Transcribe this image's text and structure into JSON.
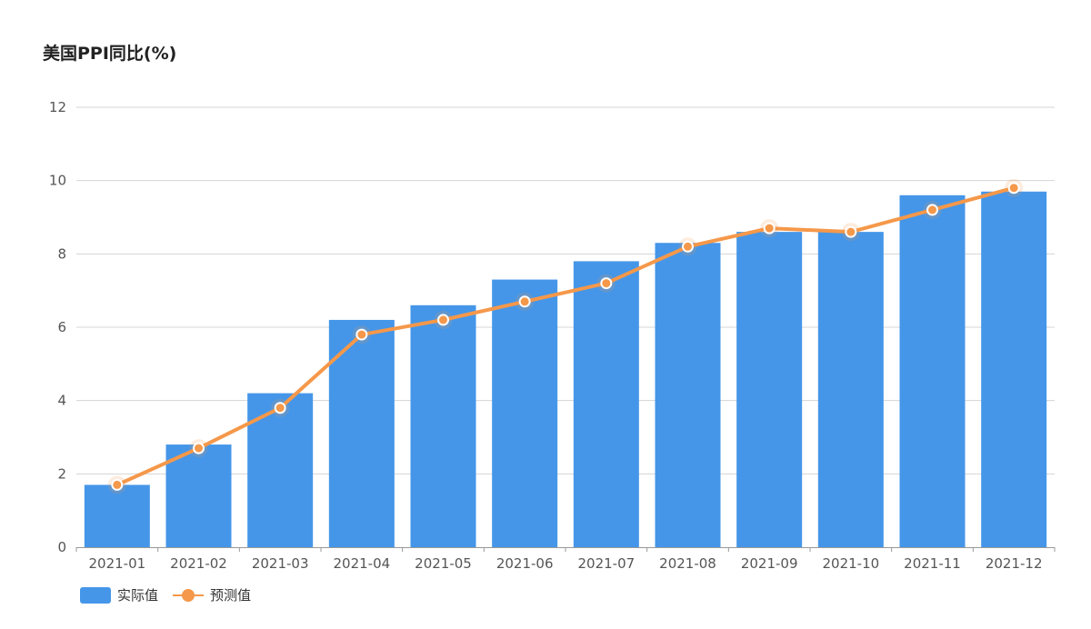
{
  "chart_data": {
    "type": "bar",
    "title": "美国PPI同比(%)",
    "xlabel": "",
    "ylabel": "",
    "categories": [
      "2021-01",
      "2021-02",
      "2021-03",
      "2021-04",
      "2021-05",
      "2021-06",
      "2021-07",
      "2021-08",
      "2021-09",
      "2021-10",
      "2021-11",
      "2021-12"
    ],
    "series": [
      {
        "name": "实际值",
        "type": "bar",
        "values": [
          1.7,
          2.8,
          4.2,
          6.2,
          6.6,
          7.3,
          7.8,
          8.3,
          8.6,
          8.6,
          9.6,
          9.7
        ]
      },
      {
        "name": "预测值",
        "type": "line",
        "values": [
          1.7,
          2.7,
          3.8,
          5.8,
          6.2,
          6.7,
          7.2,
          8.2,
          8.7,
          8.6,
          9.2,
          9.8
        ]
      }
    ],
    "ylim": [
      0,
      12
    ],
    "yticks": [
      0,
      2,
      4,
      6,
      8,
      10,
      12
    ],
    "grid": true,
    "legend_position": "bottom-left",
    "colors": {
      "bar": "#4596e8",
      "line": "#f5984a",
      "marker_stroke": "#ffffff",
      "grid": "#d4d4d4",
      "axis": "#999999"
    }
  }
}
